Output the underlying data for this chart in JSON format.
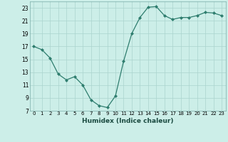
{
  "x": [
    0,
    1,
    2,
    3,
    4,
    5,
    6,
    7,
    8,
    9,
    10,
    11,
    12,
    13,
    14,
    15,
    16,
    17,
    18,
    19,
    20,
    21,
    22,
    23
  ],
  "y": [
    17.0,
    16.5,
    15.2,
    12.7,
    11.8,
    12.3,
    11.0,
    8.7,
    7.8,
    7.5,
    9.3,
    14.7,
    19.0,
    21.5,
    23.1,
    23.2,
    21.8,
    21.2,
    21.5,
    21.5,
    21.8,
    22.3,
    22.2,
    21.8
  ],
  "xlabel": "Humidex (Indice chaleur)",
  "line_color": "#2e7d6e",
  "marker_color": "#2e7d6e",
  "bg_color": "#cceee8",
  "grid_color": "#aad4ce",
  "ylim": [
    7,
    24
  ],
  "xlim": [
    -0.5,
    23.5
  ],
  "yticks": [
    7,
    9,
    11,
    13,
    15,
    17,
    19,
    21,
    23
  ],
  "xtick_labels": [
    "0",
    "1",
    "2",
    "3",
    "4",
    "5",
    "6",
    "7",
    "8",
    "9",
    "10",
    "11",
    "12",
    "13",
    "14",
    "15",
    "16",
    "17",
    "18",
    "19",
    "20",
    "21",
    "22",
    "23"
  ]
}
